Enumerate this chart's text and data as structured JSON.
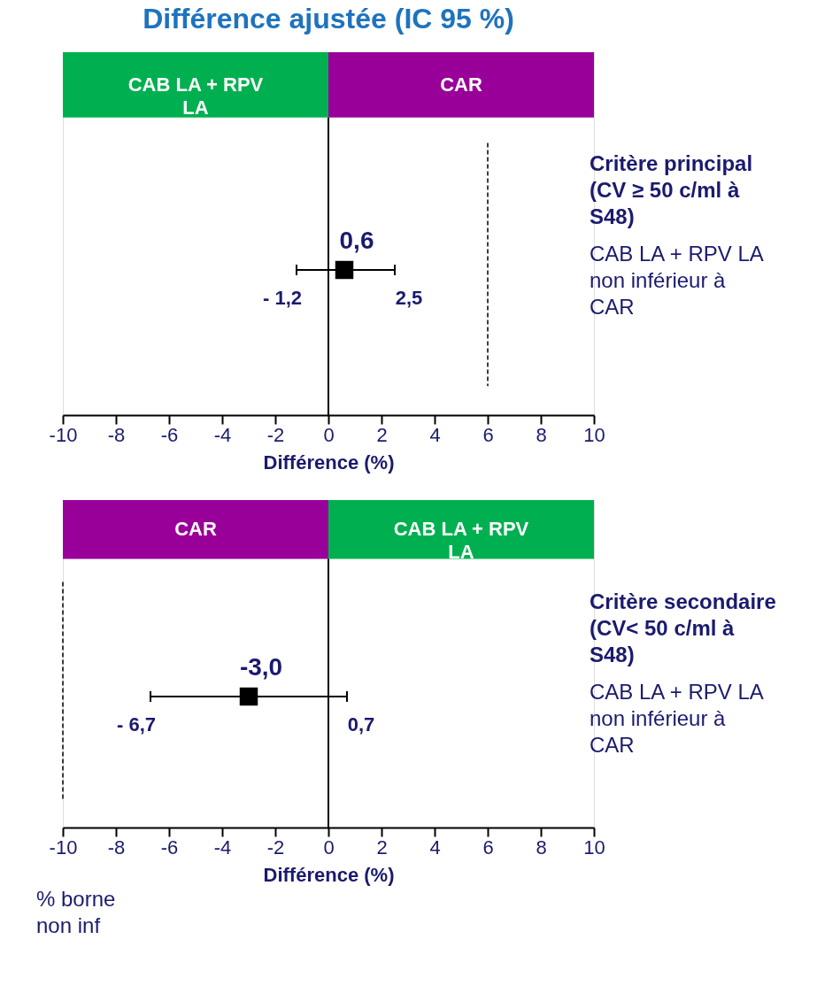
{
  "chart_data": [
    {
      "type": "scatter",
      "title": "Différence ajustée (IC 95 %)",
      "orientation": "horizontal",
      "categories": [
        null
      ],
      "values": [
        0.6
      ],
      "errors": [
        [
          -1.2,
          2.5
        ]
      ],
      "value_labels": [
        "0,6"
      ],
      "colors": [
        "#000000"
      ],
      "marker": "square",
      "xlabel": "Différence (%)",
      "xlim": [
        -10,
        10
      ],
      "xticks": [
        -10,
        -8,
        -6,
        -4,
        -2,
        0,
        2,
        4,
        6,
        8,
        10
      ],
      "grid": false,
      "bands": [
        {
          "axis": "x",
          "from": -10,
          "to": 0,
          "label": "CAB LA + RPV LA",
          "color": "#00b050"
        },
        {
          "axis": "x",
          "from": 0,
          "to": 10,
          "label": "CAR",
          "color": "#990099"
        }
      ],
      "ref_lines": [
        {
          "axis": "x",
          "value": 0,
          "line_style": "solid"
        },
        {
          "axis": "x",
          "value": 6,
          "line_style": "dashed"
        }
      ],
      "annotations": [
        "Critère principal (CV ≥ 50 c/ml à S48)",
        "CAB LA + RPV LA non inférieur à CAR",
        "- 1,2",
        "2,5"
      ]
    },
    {
      "type": "scatter",
      "orientation": "horizontal",
      "categories": [
        null
      ],
      "values": [
        -3.0
      ],
      "errors": [
        [
          -6.7,
          0.7
        ]
      ],
      "value_labels": [
        "-3,0"
      ],
      "colors": [
        "#000000"
      ],
      "marker": "square",
      "xlabel": "Différence (%)",
      "xlim": [
        -10,
        10
      ],
      "xticks": [
        -10,
        -8,
        -6,
        -4,
        -2,
        0,
        2,
        4,
        6,
        8,
        10
      ],
      "grid": false,
      "bands": [
        {
          "axis": "x",
          "from": -10,
          "to": 0,
          "label": "CAR",
          "color": "#990099"
        },
        {
          "axis": "x",
          "from": 0,
          "to": 10,
          "label": "CAB LA + RPV LA",
          "color": "#00b050"
        }
      ],
      "ref_lines": [
        {
          "axis": "x",
          "value": 0,
          "line_style": "solid"
        },
        {
          "axis": "x",
          "value": -10,
          "line_style": "dashed"
        }
      ],
      "annotations": [
        "Critère secondaire (CV< 50 c/ml à S48)",
        "CAB LA + RPV LA non inférieur à CAR",
        "- 6,7",
        "0,7",
        "% borne non inf"
      ]
    }
  ]
}
